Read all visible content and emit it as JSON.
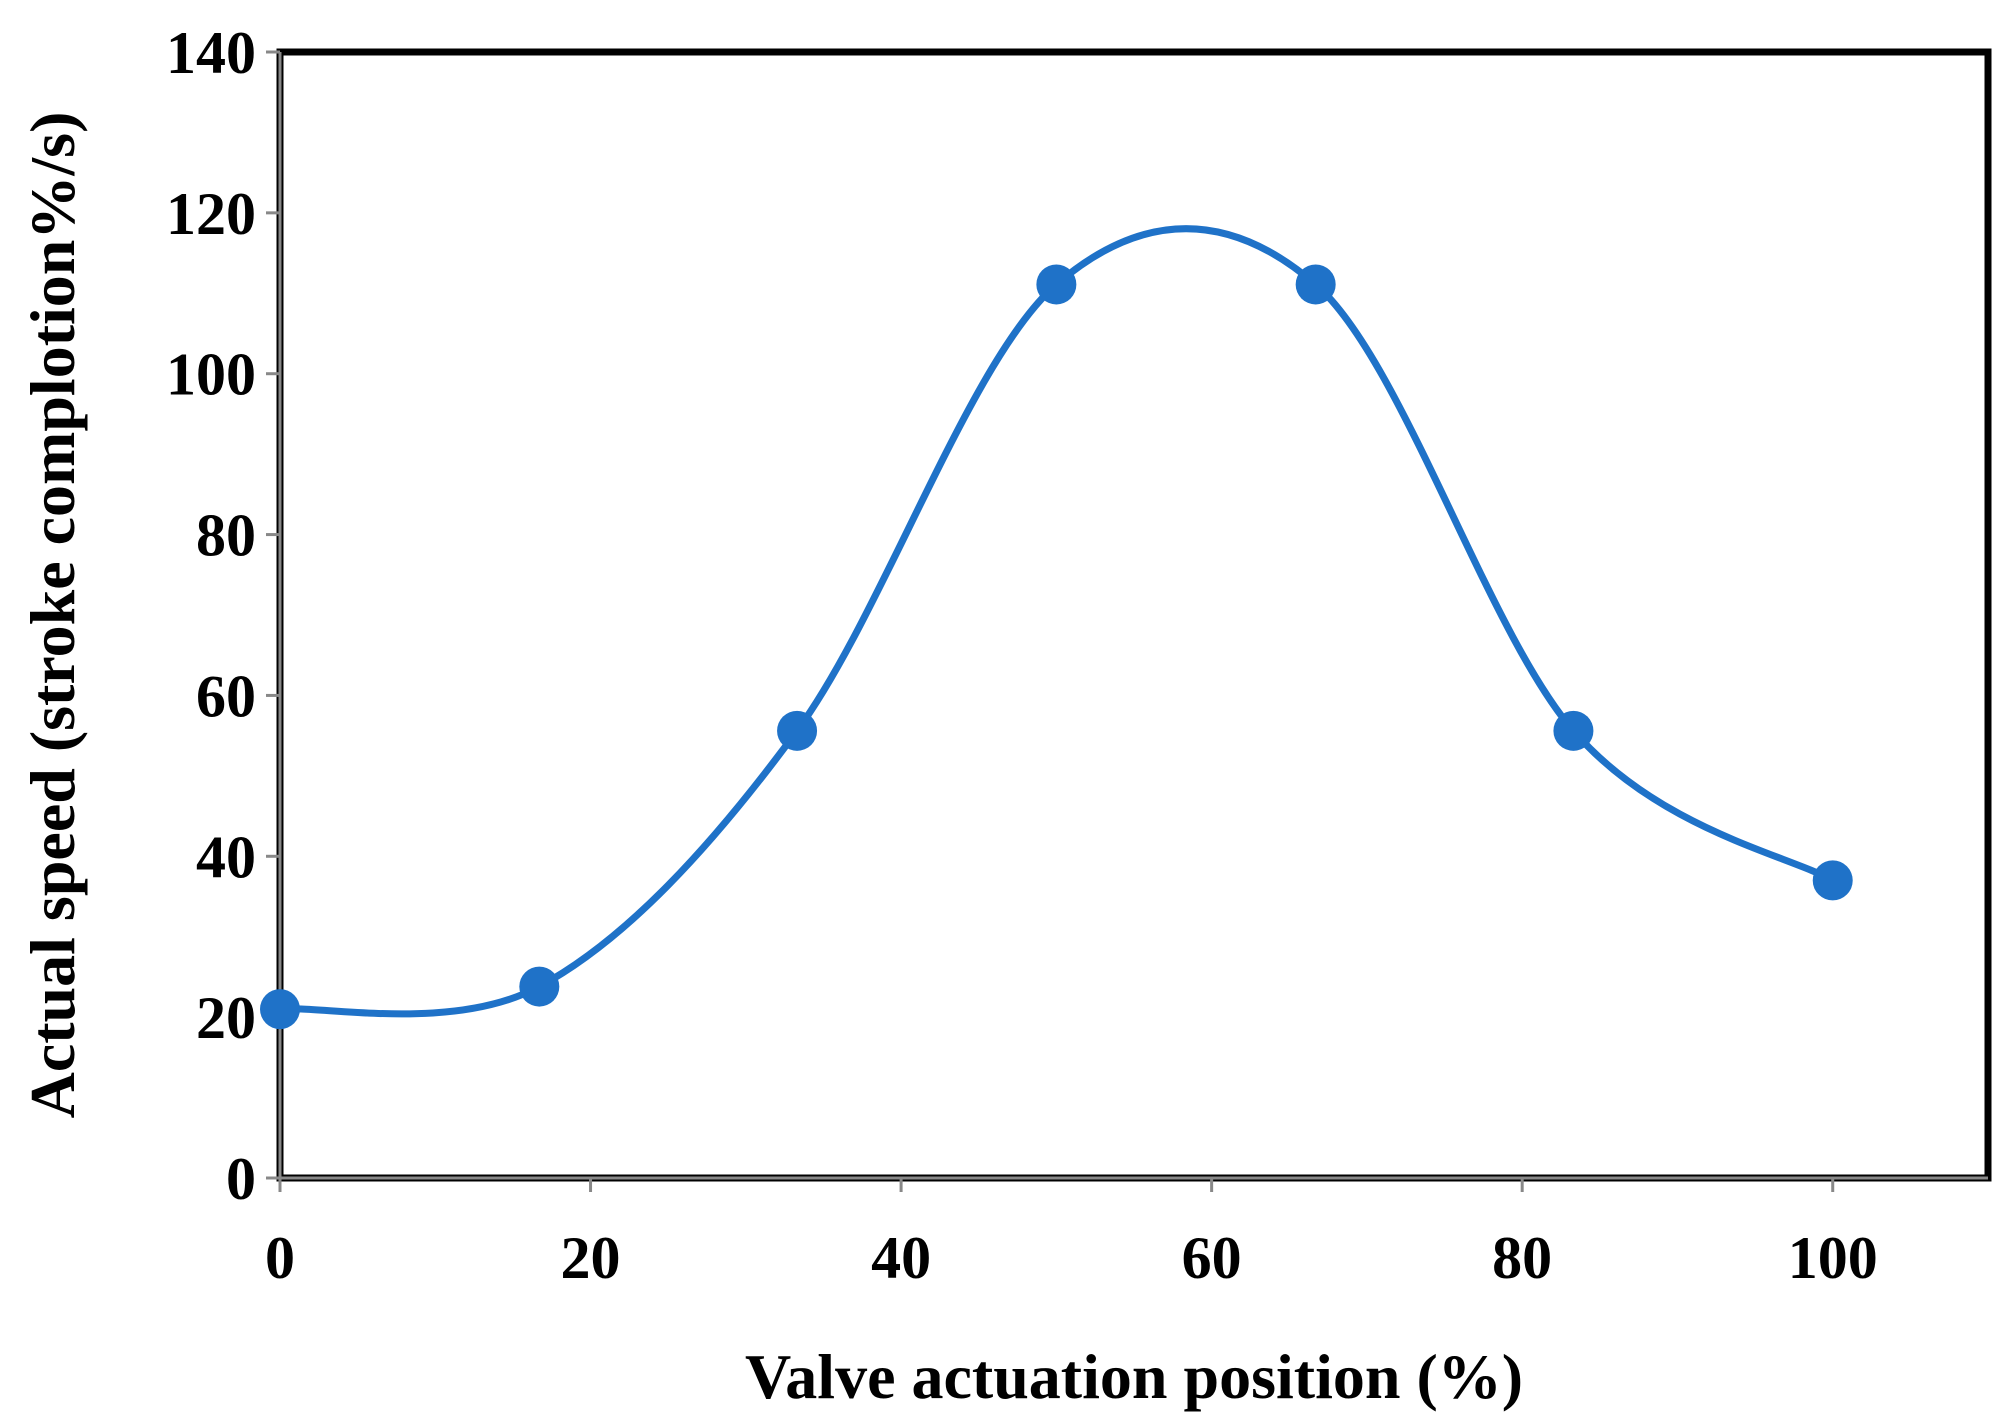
{
  "chart_data": {
    "type": "line",
    "title": "",
    "xlabel": "Valve actuation position (%)",
    "ylabel": "Actual speed (stroke complotion%/s)",
    "xlim": [
      0,
      110
    ],
    "ylim": [
      0,
      140
    ],
    "xticks": [
      0,
      20,
      40,
      60,
      80,
      100
    ],
    "xtick_labels": [
      "0",
      "20",
      "40",
      "60",
      "80",
      "100"
    ],
    "yticks": [
      0,
      20,
      40,
      60,
      80,
      100,
      120,
      140
    ],
    "ytick_labels": [
      "0",
      "20",
      "40",
      "60",
      "80",
      "100",
      "120",
      "140"
    ],
    "grid": false,
    "smooth": true,
    "series": [
      {
        "name": "Actual speed",
        "color": "#1f72c8",
        "x": [
          0,
          16.7,
          33.3,
          50,
          66.7,
          83.3,
          100
        ],
        "y": [
          21,
          23.8,
          55.6,
          111.1,
          111.1,
          55.6,
          37
        ]
      }
    ]
  }
}
